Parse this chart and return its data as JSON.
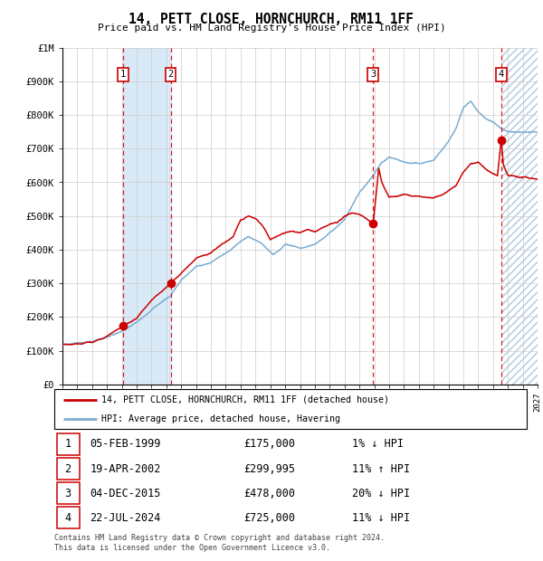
{
  "title": "14, PETT CLOSE, HORNCHURCH, RM11 1FF",
  "subtitle": "Price paid vs. HM Land Registry's House Price Index (HPI)",
  "footer_line1": "Contains HM Land Registry data © Crown copyright and database right 2024.",
  "footer_line2": "This data is licensed under the Open Government Licence v3.0.",
  "legend_red": "14, PETT CLOSE, HORNCHURCH, RM11 1FF (detached house)",
  "legend_blue": "HPI: Average price, detached house, Havering",
  "sales": [
    {
      "num": 1,
      "date_label": "05-FEB-1999",
      "price_label": "£175,000",
      "hpi_label": "1% ↓ HPI",
      "year": 1999.09,
      "price": 175000
    },
    {
      "num": 2,
      "date_label": "19-APR-2002",
      "price_label": "£299,995",
      "hpi_label": "11% ↑ HPI",
      "year": 2002.29,
      "price": 299995
    },
    {
      "num": 3,
      "date_label": "04-DEC-2015",
      "price_label": "£478,000",
      "hpi_label": "20% ↓ HPI",
      "year": 2015.92,
      "price": 478000
    },
    {
      "num": 4,
      "date_label": "22-JUL-2024",
      "price_label": "£725,000",
      "hpi_label": "11% ↓ HPI",
      "year": 2024.55,
      "price": 725000
    }
  ],
  "xmin": 1995.0,
  "xmax": 2027.0,
  "ymin": 0,
  "ymax": 1000000,
  "yticks": [
    0,
    100000,
    200000,
    300000,
    400000,
    500000,
    600000,
    700000,
    800000,
    900000,
    1000000
  ],
  "ytick_labels": [
    "£0",
    "£100K",
    "£200K",
    "£300K",
    "£400K",
    "£500K",
    "£600K",
    "£700K",
    "£800K",
    "£900K",
    "£1M"
  ],
  "grid_color": "#cccccc",
  "plot_bg_color": "#ffffff",
  "red_color": "#cc0000",
  "blue_color": "#7aadd4",
  "shade_color": "#d8eaf7",
  "hatch_color": "#b0c8dd",
  "dashed_line_color": "#dd0000",
  "hpi_anchors": [
    [
      1995.0,
      118000
    ],
    [
      1996.0,
      122000
    ],
    [
      1997.0,
      128000
    ],
    [
      1998.0,
      140000
    ],
    [
      1999.09,
      160000
    ],
    [
      2000.0,
      185000
    ],
    [
      2001.0,
      220000
    ],
    [
      2002.29,
      265000
    ],
    [
      2003.0,
      310000
    ],
    [
      2004.0,
      350000
    ],
    [
      2005.0,
      360000
    ],
    [
      2006.0,
      390000
    ],
    [
      2007.5,
      440000
    ],
    [
      2008.5,
      415000
    ],
    [
      2009.2,
      385000
    ],
    [
      2010.0,
      415000
    ],
    [
      2011.0,
      405000
    ],
    [
      2012.0,
      415000
    ],
    [
      2013.0,
      450000
    ],
    [
      2014.0,
      490000
    ],
    [
      2015.0,
      570000
    ],
    [
      2015.92,
      620000
    ],
    [
      2016.5,
      660000
    ],
    [
      2017.0,
      675000
    ],
    [
      2018.0,
      660000
    ],
    [
      2019.0,
      655000
    ],
    [
      2020.0,
      665000
    ],
    [
      2021.0,
      720000
    ],
    [
      2021.5,
      760000
    ],
    [
      2022.0,
      820000
    ],
    [
      2022.5,
      840000
    ],
    [
      2023.0,
      810000
    ],
    [
      2023.5,
      790000
    ],
    [
      2024.0,
      780000
    ],
    [
      2024.55,
      760000
    ],
    [
      2025.0,
      750000
    ],
    [
      2026.0,
      750000
    ],
    [
      2027.0,
      750000
    ]
  ],
  "red_anchors": [
    [
      1995.0,
      118000
    ],
    [
      1996.0,
      120000
    ],
    [
      1997.0,
      126000
    ],
    [
      1998.0,
      142000
    ],
    [
      1999.09,
      175000
    ],
    [
      2000.0,
      195000
    ],
    [
      2001.0,
      250000
    ],
    [
      2002.29,
      299995
    ],
    [
      2003.0,
      330000
    ],
    [
      2004.0,
      375000
    ],
    [
      2005.0,
      390000
    ],
    [
      2006.5,
      440000
    ],
    [
      2007.0,
      490000
    ],
    [
      2007.5,
      500000
    ],
    [
      2008.0,
      495000
    ],
    [
      2008.5,
      470000
    ],
    [
      2009.0,
      430000
    ],
    [
      2009.5,
      440000
    ],
    [
      2010.0,
      450000
    ],
    [
      2010.5,
      455000
    ],
    [
      2011.0,
      450000
    ],
    [
      2011.5,
      460000
    ],
    [
      2012.0,
      455000
    ],
    [
      2012.5,
      465000
    ],
    [
      2013.0,
      475000
    ],
    [
      2013.5,
      480000
    ],
    [
      2014.0,
      500000
    ],
    [
      2014.5,
      510000
    ],
    [
      2015.0,
      505000
    ],
    [
      2015.5,
      490000
    ],
    [
      2015.92,
      478000
    ],
    [
      2016.1,
      550000
    ],
    [
      2016.3,
      640000
    ],
    [
      2016.5,
      600000
    ],
    [
      2017.0,
      555000
    ],
    [
      2017.5,
      560000
    ],
    [
      2018.0,
      565000
    ],
    [
      2018.5,
      560000
    ],
    [
      2019.0,
      560000
    ],
    [
      2019.5,
      555000
    ],
    [
      2020.0,
      555000
    ],
    [
      2020.5,
      560000
    ],
    [
      2021.0,
      575000
    ],
    [
      2021.5,
      590000
    ],
    [
      2022.0,
      630000
    ],
    [
      2022.5,
      655000
    ],
    [
      2023.0,
      660000
    ],
    [
      2023.5,
      640000
    ],
    [
      2024.0,
      625000
    ],
    [
      2024.3,
      620000
    ],
    [
      2024.55,
      725000
    ],
    [
      2024.7,
      650000
    ],
    [
      2025.0,
      620000
    ],
    [
      2026.0,
      615000
    ],
    [
      2027.0,
      610000
    ]
  ]
}
